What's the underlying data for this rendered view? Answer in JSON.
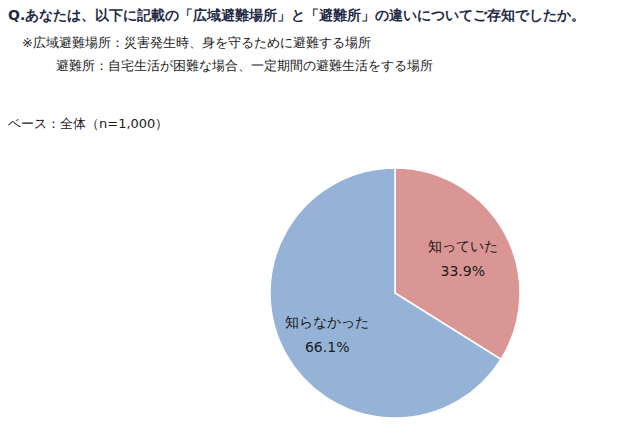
{
  "chart_data": {
    "type": "pie",
    "title": "Q.あなたは、以下に記載の「広域避難場所」と「避難所」の違いについてご存知でしたか。",
    "annotations": [
      "※広域避難場所：災害発生時、身を守るために避難する場所",
      "避難所：自宅生活が困難な場合、一定期間の避難生活をする場所"
    ],
    "subtitle": "ベース：全体（n=1,000）",
    "categories": [
      "知っていた",
      "知らなかった"
    ],
    "values": [
      33.9,
      66.1
    ],
    "value_labels": [
      "33.9%",
      "66.1%"
    ],
    "colors": [
      "#d99694",
      "#95b3d7"
    ],
    "data_labels": true
  }
}
